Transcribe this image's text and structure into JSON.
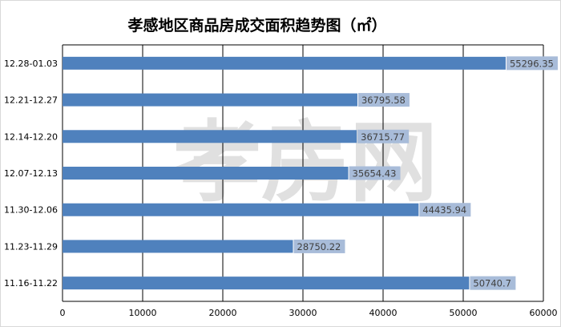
{
  "chart_data": {
    "type": "bar",
    "orientation": "horizontal",
    "title": "孝感地区商品房成交面积趋势图（㎡）",
    "categories": [
      "12.28-01.03",
      "12.21-12.27",
      "12.14-12.20",
      "12.07-12.13",
      "11.30-12.06",
      "11.23-11.29",
      "11.16-11.22"
    ],
    "values": [
      55296.35,
      36795.58,
      36715.77,
      35654.43,
      44435.94,
      28750.22,
      50740.7
    ],
    "value_labels": [
      "55296.35",
      "36795.58",
      "36715.77",
      "35654.43",
      "44435.94",
      "28750.22",
      "50740.7"
    ],
    "xlim": [
      0,
      60000
    ],
    "xticks": [
      0,
      10000,
      20000,
      30000,
      40000,
      50000,
      60000
    ],
    "xtick_labels": [
      "0",
      "10000",
      "20000",
      "30000",
      "40000",
      "50000",
      "60000"
    ],
    "grid": true,
    "legend": "none",
    "watermark_text": "孝房网",
    "colors": {
      "bar": "#4f81bd",
      "label_box": "#a8bcd9",
      "label_text": "#404040",
      "grid": "#000000",
      "title": "#000000",
      "watermark": "#e0e0e0"
    }
  }
}
